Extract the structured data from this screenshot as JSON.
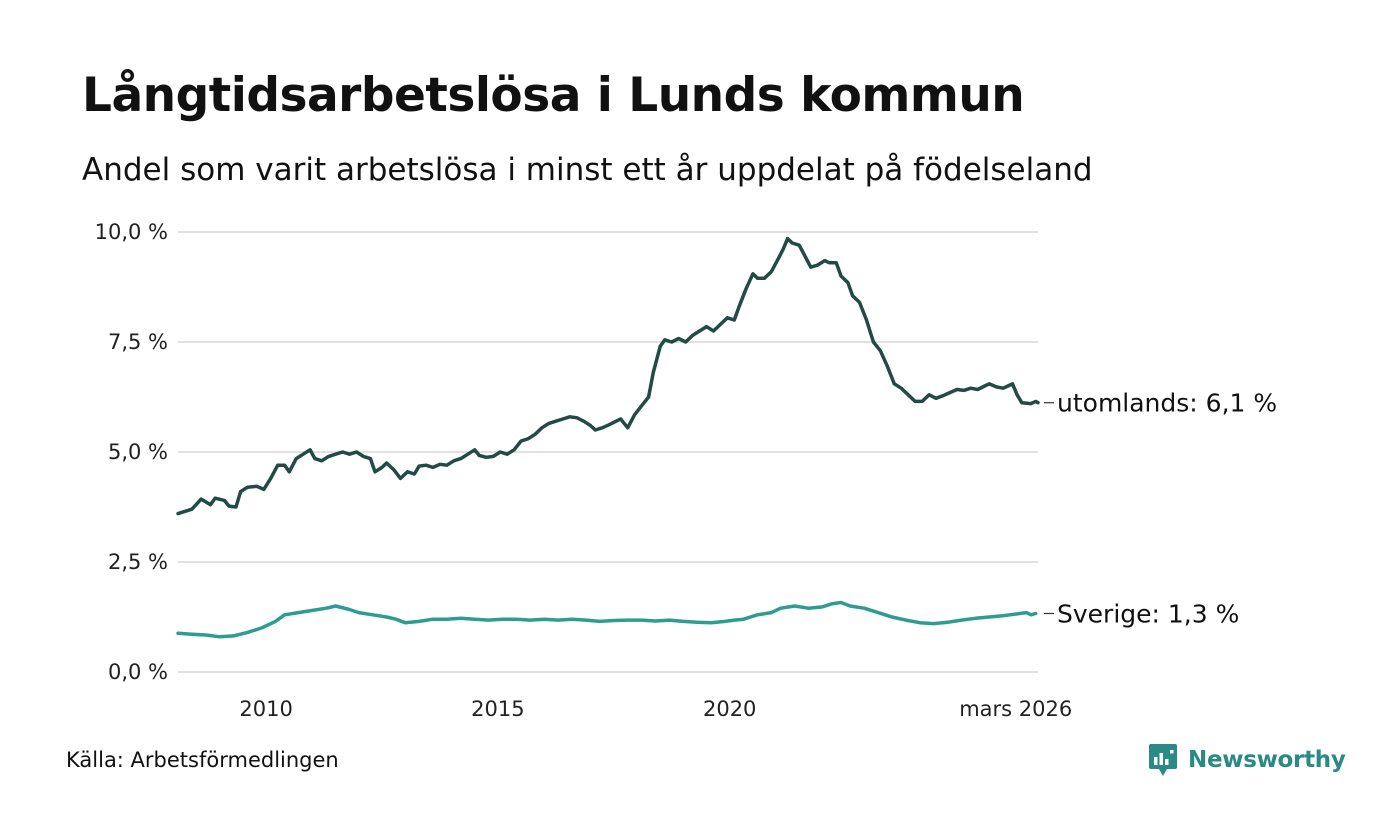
{
  "header": {
    "title": "Långtidsarbetslösa i Lunds kommun",
    "subtitle": "Andel som varit arbetslösa i minst ett år uppdelat på födelseland"
  },
  "chart_data": {
    "type": "line",
    "title": "Långtidsarbetslösa i Lunds kommun",
    "subtitle": "Andel som varit arbetslösa i minst ett år uppdelat på födelseland",
    "xlabel": "",
    "ylabel": "",
    "xlim": [
      2008.1,
      2026.2
    ],
    "ylim": [
      0,
      10
    ],
    "y_ticks": [
      0,
      2.5,
      5,
      7.5,
      10
    ],
    "y_tick_labels": [
      "0,0 %",
      "2,5 %",
      "5,0 %",
      "7,5 %",
      "10,0 %"
    ],
    "x_ticks": [
      2010,
      2015,
      2020,
      2026.17
    ],
    "x_tick_labels": [
      "2010",
      "2015",
      "2020",
      "mars 2026"
    ],
    "grid": true,
    "series": [
      {
        "name": "utomlands",
        "color": "#234b45",
        "end_label": "utomlands: 6,1 %",
        "points": [
          [
            2008.1,
            3.6
          ],
          [
            2008.4,
            3.7
          ],
          [
            2008.6,
            3.93
          ],
          [
            2008.8,
            3.8
          ],
          [
            2008.9,
            3.95
          ],
          [
            2009.1,
            3.9
          ],
          [
            2009.2,
            3.77
          ],
          [
            2009.35,
            3.75
          ],
          [
            2009.45,
            4.1
          ],
          [
            2009.6,
            4.2
          ],
          [
            2009.8,
            4.22
          ],
          [
            2009.95,
            4.15
          ],
          [
            2010.1,
            4.4
          ],
          [
            2010.25,
            4.7
          ],
          [
            2010.4,
            4.7
          ],
          [
            2010.5,
            4.55
          ],
          [
            2010.65,
            4.85
          ],
          [
            2010.8,
            4.95
          ],
          [
            2010.95,
            5.05
          ],
          [
            2011.05,
            4.85
          ],
          [
            2011.2,
            4.8
          ],
          [
            2011.35,
            4.9
          ],
          [
            2011.5,
            4.95
          ],
          [
            2011.65,
            5.0
          ],
          [
            2011.8,
            4.95
          ],
          [
            2011.95,
            5.0
          ],
          [
            2012.1,
            4.9
          ],
          [
            2012.25,
            4.85
          ],
          [
            2012.35,
            4.55
          ],
          [
            2012.5,
            4.65
          ],
          [
            2012.6,
            4.75
          ],
          [
            2012.75,
            4.6
          ],
          [
            2012.9,
            4.4
          ],
          [
            2013.05,
            4.55
          ],
          [
            2013.2,
            4.5
          ],
          [
            2013.3,
            4.68
          ],
          [
            2013.45,
            4.7
          ],
          [
            2013.6,
            4.65
          ],
          [
            2013.75,
            4.72
          ],
          [
            2013.9,
            4.7
          ],
          [
            2014.05,
            4.8
          ],
          [
            2014.2,
            4.85
          ],
          [
            2014.35,
            4.95
          ],
          [
            2014.5,
            5.05
          ],
          [
            2014.6,
            4.92
          ],
          [
            2014.75,
            4.88
          ],
          [
            2014.9,
            4.9
          ],
          [
            2015.05,
            5.0
          ],
          [
            2015.2,
            4.95
          ],
          [
            2015.35,
            5.05
          ],
          [
            2015.5,
            5.25
          ],
          [
            2015.65,
            5.3
          ],
          [
            2015.8,
            5.4
          ],
          [
            2015.95,
            5.55
          ],
          [
            2016.1,
            5.65
          ],
          [
            2016.25,
            5.7
          ],
          [
            2016.4,
            5.75
          ],
          [
            2016.55,
            5.8
          ],
          [
            2016.7,
            5.78
          ],
          [
            2016.85,
            5.7
          ],
          [
            2017.0,
            5.6
          ],
          [
            2017.1,
            5.5
          ],
          [
            2017.25,
            5.55
          ],
          [
            2017.4,
            5.62
          ],
          [
            2017.55,
            5.7
          ],
          [
            2017.65,
            5.75
          ],
          [
            2017.8,
            5.55
          ],
          [
            2017.95,
            5.85
          ],
          [
            2018.1,
            6.05
          ],
          [
            2018.25,
            6.25
          ],
          [
            2018.35,
            6.8
          ],
          [
            2018.5,
            7.4
          ],
          [
            2018.6,
            7.55
          ],
          [
            2018.75,
            7.5
          ],
          [
            2018.9,
            7.58
          ],
          [
            2019.05,
            7.5
          ],
          [
            2019.2,
            7.65
          ],
          [
            2019.35,
            7.75
          ],
          [
            2019.5,
            7.85
          ],
          [
            2019.65,
            7.75
          ],
          [
            2019.8,
            7.9
          ],
          [
            2019.95,
            8.05
          ],
          [
            2020.1,
            8.0
          ],
          [
            2020.2,
            8.3
          ],
          [
            2020.35,
            8.7
          ],
          [
            2020.5,
            9.05
          ],
          [
            2020.6,
            8.95
          ],
          [
            2020.75,
            8.95
          ],
          [
            2020.9,
            9.1
          ],
          [
            2021.05,
            9.4
          ],
          [
            2021.15,
            9.6
          ],
          [
            2021.25,
            9.85
          ],
          [
            2021.35,
            9.75
          ],
          [
            2021.5,
            9.7
          ],
          [
            2021.6,
            9.5
          ],
          [
            2021.75,
            9.2
          ],
          [
            2021.9,
            9.25
          ],
          [
            2022.05,
            9.35
          ],
          [
            2022.15,
            9.3
          ],
          [
            2022.3,
            9.3
          ],
          [
            2022.4,
            9.0
          ],
          [
            2022.55,
            8.85
          ],
          [
            2022.65,
            8.55
          ],
          [
            2022.8,
            8.4
          ],
          [
            2022.95,
            8.0
          ],
          [
            2023.1,
            7.5
          ],
          [
            2023.25,
            7.3
          ],
          [
            2023.4,
            6.95
          ],
          [
            2023.55,
            6.55
          ],
          [
            2023.7,
            6.45
          ],
          [
            2023.85,
            6.3
          ],
          [
            2024.0,
            6.15
          ],
          [
            2024.15,
            6.15
          ],
          [
            2024.3,
            6.3
          ],
          [
            2024.45,
            6.22
          ],
          [
            2024.6,
            6.28
          ],
          [
            2024.75,
            6.35
          ],
          [
            2024.9,
            6.42
          ],
          [
            2025.05,
            6.4
          ],
          [
            2025.2,
            6.45
          ],
          [
            2025.35,
            6.42
          ],
          [
            2025.5,
            6.5
          ],
          [
            2025.6,
            6.55
          ],
          [
            2025.75,
            6.48
          ],
          [
            2025.9,
            6.45
          ],
          [
            2026.0,
            6.5
          ],
          [
            2026.1,
            6.55
          ],
          [
            2026.2,
            6.3
          ],
          [
            2026.3,
            6.12
          ],
          [
            2026.5,
            6.1
          ],
          [
            2026.6,
            6.15
          ],
          [
            2026.65,
            6.12
          ]
        ]
      },
      {
        "name": "Sverige",
        "color": "#2f9c91",
        "end_label": "Sverige: 1,3 %",
        "points": [
          [
            2008.1,
            0.88
          ],
          [
            2008.4,
            0.86
          ],
          [
            2008.7,
            0.84
          ],
          [
            2009.0,
            0.8
          ],
          [
            2009.3,
            0.82
          ],
          [
            2009.6,
            0.9
          ],
          [
            2009.9,
            1.0
          ],
          [
            2010.2,
            1.15
          ],
          [
            2010.4,
            1.3
          ],
          [
            2010.7,
            1.35
          ],
          [
            2011.0,
            1.4
          ],
          [
            2011.3,
            1.45
          ],
          [
            2011.5,
            1.5
          ],
          [
            2011.8,
            1.42
          ],
          [
            2012.0,
            1.35
          ],
          [
            2012.3,
            1.3
          ],
          [
            2012.6,
            1.25
          ],
          [
            2012.8,
            1.2
          ],
          [
            2013.0,
            1.12
          ],
          [
            2013.3,
            1.15
          ],
          [
            2013.6,
            1.2
          ],
          [
            2013.9,
            1.2
          ],
          [
            2014.2,
            1.22
          ],
          [
            2014.5,
            1.2
          ],
          [
            2014.8,
            1.18
          ],
          [
            2015.1,
            1.2
          ],
          [
            2015.4,
            1.2
          ],
          [
            2015.7,
            1.18
          ],
          [
            2016.0,
            1.2
          ],
          [
            2016.3,
            1.18
          ],
          [
            2016.6,
            1.2
          ],
          [
            2016.9,
            1.18
          ],
          [
            2017.2,
            1.15
          ],
          [
            2017.5,
            1.17
          ],
          [
            2017.8,
            1.18
          ],
          [
            2018.1,
            1.18
          ],
          [
            2018.4,
            1.16
          ],
          [
            2018.7,
            1.18
          ],
          [
            2019.0,
            1.15
          ],
          [
            2019.3,
            1.13
          ],
          [
            2019.6,
            1.12
          ],
          [
            2019.9,
            1.15
          ],
          [
            2020.1,
            1.18
          ],
          [
            2020.3,
            1.2
          ],
          [
            2020.6,
            1.3
          ],
          [
            2020.9,
            1.35
          ],
          [
            2021.1,
            1.45
          ],
          [
            2021.4,
            1.5
          ],
          [
            2021.7,
            1.45
          ],
          [
            2022.0,
            1.48
          ],
          [
            2022.2,
            1.55
          ],
          [
            2022.4,
            1.58
          ],
          [
            2022.6,
            1.5
          ],
          [
            2022.9,
            1.45
          ],
          [
            2023.2,
            1.35
          ],
          [
            2023.5,
            1.25
          ],
          [
            2023.8,
            1.18
          ],
          [
            2024.1,
            1.12
          ],
          [
            2024.4,
            1.1
          ],
          [
            2024.7,
            1.13
          ],
          [
            2025.0,
            1.18
          ],
          [
            2025.3,
            1.22
          ],
          [
            2025.6,
            1.25
          ],
          [
            2025.9,
            1.28
          ],
          [
            2026.2,
            1.32
          ],
          [
            2026.4,
            1.35
          ],
          [
            2026.5,
            1.3
          ],
          [
            2026.6,
            1.33
          ]
        ]
      }
    ]
  },
  "footer": {
    "source": "Källa: Arbetsförmedlingen",
    "brand": "Newsworthy"
  }
}
